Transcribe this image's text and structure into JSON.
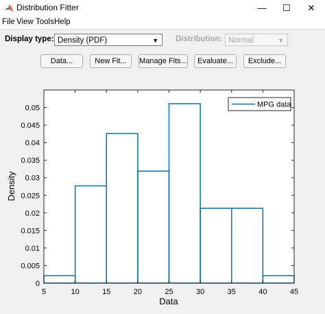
{
  "window": {
    "title": "Distribution Fitter",
    "min_glyph": "—",
    "max_glyph": "☐",
    "close_glyph": "✕"
  },
  "menu": [
    "File",
    "View",
    "Tools",
    "Help"
  ],
  "controls": {
    "display_type_label": "Display type:",
    "display_type_value": "Density (PDF)",
    "distribution_label": "Distribution:",
    "distribution_value": "Normal"
  },
  "buttons": [
    "Data...",
    "New Fit...",
    "Manage Fits...",
    "Evaluate...",
    "Exclude..."
  ],
  "colors": {
    "series": "#0072bd"
  },
  "chart_data": {
    "type": "bar",
    "xlabel": "Data",
    "ylabel": "Density",
    "xlim": [
      5,
      45
    ],
    "ylim": [
      0,
      0.055
    ],
    "x_ticks": [
      5,
      10,
      15,
      20,
      25,
      30,
      35,
      40,
      45
    ],
    "y_ticks": [
      0,
      0.005,
      0.01,
      0.015,
      0.02,
      0.025,
      0.03,
      0.035,
      0.04,
      0.045,
      0.05
    ],
    "y_tick_labels": [
      "0",
      "0.005",
      "0.01",
      "0.015",
      "0.02",
      "0.025",
      "0.03",
      "0.035",
      "0.04",
      "0.045",
      "0.05"
    ],
    "bin_edges": [
      5,
      10,
      15,
      20,
      25,
      30,
      35,
      40,
      45
    ],
    "series": [
      {
        "name": "MPG data",
        "values": [
          0.0021,
          0.0277,
          0.0426,
          0.0319,
          0.0511,
          0.0213,
          0.0213,
          0.0021
        ]
      }
    ],
    "legend_position": "top-right",
    "grid": false
  }
}
